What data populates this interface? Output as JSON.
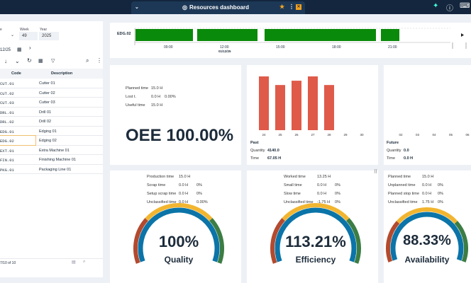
{
  "header": {
    "title": "Resources dashboard"
  },
  "filters": {
    "type_label": "e",
    "week_label": "Week",
    "week_value": "49",
    "year_label": "Year",
    "year_value": "2025",
    "date_value": "12/25"
  },
  "table": {
    "columns": [
      "Code",
      "Description"
    ],
    "rows": [
      [
        "CUT.01",
        "Cutter 01"
      ],
      [
        "CUT.02",
        "Cutter 02"
      ],
      [
        "CUT.03",
        "Cutter 03"
      ],
      [
        "DRL.01",
        "Drill 01"
      ],
      [
        "DRL.02",
        "Drill 02"
      ],
      [
        "EDG.01",
        "Edging 01"
      ],
      [
        "EDG.02",
        "Edging 02"
      ],
      [
        "EXT.01",
        "Extra Machine 01"
      ],
      [
        "FIN.01",
        "Finishing Machine 01"
      ],
      [
        "PKG.01",
        "Packaging Line 01"
      ]
    ],
    "footer": "7/10 of 10"
  },
  "gantt": {
    "resource": "EDG.02",
    "ticks": [
      "09:00",
      "12:00",
      "15:00",
      "18:00",
      "21:00"
    ],
    "date": "01/12/25",
    "color": "#0a8a0a"
  },
  "oee": {
    "planned_label": "Planned time",
    "planned": "15.0 H",
    "lost_label": "Lost t.",
    "lost": "0.0 H",
    "lost_pct": "0.00%",
    "useful_label": "Useful time",
    "useful": "15.0 H",
    "value": "OEE 100.00%"
  },
  "past": {
    "title": "Past",
    "quantity_label": "Quantity",
    "quantity": "4140.0",
    "time_label": "Time",
    "time": "67.05 H",
    "days": [
      "24",
      "25",
      "26",
      "27",
      "28",
      "29",
      "30"
    ],
    "values": [
      1,
      0.84,
      0.92,
      1,
      0.84,
      0,
      0
    ],
    "color": "#e05a4a"
  },
  "future": {
    "title": "Future",
    "quantity_label": "Quantity",
    "quantity": "0.0",
    "time_label": "Time",
    "time": "0.0 H",
    "days": [
      "02",
      "03",
      "04",
      "05",
      "06"
    ]
  },
  "quality": {
    "rows": [
      [
        "Production time",
        "15.0 H",
        ""
      ],
      [
        "Scrap time",
        "0.0 H",
        "0%"
      ],
      [
        "Setup scrap time",
        "0.0 H",
        "0%"
      ],
      [
        "Unclassified time",
        "0.0 H",
        "0.00%"
      ]
    ],
    "value": "100%",
    "label": "Quality"
  },
  "efficiency": {
    "rows": [
      [
        "Worked time",
        "13.25 H",
        ""
      ],
      [
        "Small time",
        "0.0 H",
        "0%"
      ],
      [
        "Slow time",
        "0.0 H",
        "0%"
      ],
      [
        "Unclassified time",
        "-1.75 H",
        "0%"
      ]
    ],
    "value": "113.21%",
    "label": "Efficiency"
  },
  "availability": {
    "rows": [
      [
        "Planned time",
        "15.0 H",
        ""
      ],
      [
        "Unplanned time",
        "0.0 H",
        "0%"
      ],
      [
        "Planned stop time",
        "0.0 H",
        "0%"
      ],
      [
        "Unclassified time",
        "1.75 H",
        "0%"
      ]
    ],
    "value": "88.33%",
    "label": "Availability"
  }
}
